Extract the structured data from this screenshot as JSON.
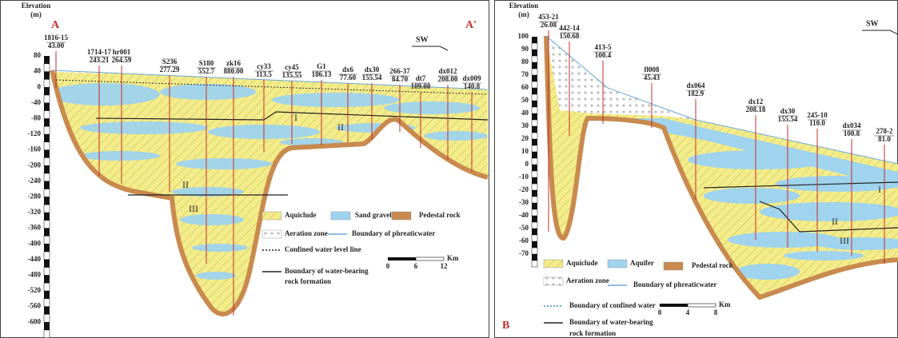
{
  "left_panel": {
    "axis_title": [
      "Elevation",
      "(m)"
    ],
    "section_start": "A",
    "section_end": "A'",
    "direction": "SW",
    "elevation_ticks": [
      "80",
      "40",
      "0",
      "-40",
      "-80",
      "-120",
      "-160",
      "-200",
      "-240",
      "-280",
      "-320",
      "-360",
      "-400",
      "-440",
      "-480",
      "-520",
      "-560",
      "-600"
    ],
    "wells": [
      {
        "name": "1816-15",
        "depth": "43.00"
      },
      {
        "name": "1714-17",
        "depth": "243.21"
      },
      {
        "name": "hr001",
        "depth": "264.59"
      },
      {
        "name": "S236",
        "depth": "277.29"
      },
      {
        "name": "S180",
        "depth": "552.7"
      },
      {
        "name": "zk16",
        "depth": "880.00"
      },
      {
        "name": "cy33",
        "depth": "113.5"
      },
      {
        "name": "cy45",
        "depth": "135.55"
      },
      {
        "name": "G1",
        "depth": "186.13"
      },
      {
        "name": "dx6",
        "depth": "77.60"
      },
      {
        "name": "dx30",
        "depth": "155.54"
      },
      {
        "name": "266-37",
        "depth": "84.70"
      },
      {
        "name": "dt7",
        "depth": "109.00"
      },
      {
        "name": "dx012",
        "depth": "208.00"
      },
      {
        "name": "dx009",
        "depth": "140.8"
      }
    ],
    "zones": [
      "I",
      "II",
      "II",
      "III"
    ],
    "legend": [
      "Aquiclude",
      "Sand gravel",
      "Pedestal rock",
      "Aeration zone",
      "Boundary of phreaticwater",
      "Confined water level line",
      "Boundary of water-bearing",
      "rock formation"
    ],
    "scale": {
      "ticks": [
        "0",
        "6",
        "12"
      ],
      "unit": "Km"
    }
  },
  "right_panel": {
    "axis_title": [
      "Elevation",
      "(m)"
    ],
    "section_start": "B",
    "direction": "SW",
    "elevation_ticks": [
      "100",
      "90",
      "80",
      "70",
      "60",
      "50",
      "40",
      "30",
      "20",
      "10",
      "0",
      "-10",
      "-20",
      "-30",
      "-40",
      "-50",
      "-60",
      "-70"
    ],
    "wells": [
      {
        "name": "453-21",
        "depth": "26.08"
      },
      {
        "name": "442-14",
        "depth": "150.68"
      },
      {
        "name": "413-5",
        "depth": "100.4"
      },
      {
        "name": "fl008",
        "depth": "45.43"
      },
      {
        "name": "dx064",
        "depth": "182.9"
      },
      {
        "name": "dx12",
        "depth": "208.18"
      },
      {
        "name": "dx30",
        "depth": "155.54"
      },
      {
        "name": "245-10",
        "depth": "110.0"
      },
      {
        "name": "dx034",
        "depth": "100.8"
      },
      {
        "name": "278-2",
        "depth": "81.0"
      }
    ],
    "zones": [
      "I",
      "II",
      "III"
    ],
    "legend": [
      "Aquiclude",
      "Aquifer",
      "Pedestal rock",
      "Aeration zone",
      "Boundary of phreaticwater",
      "Boundary of confined water",
      "Boundary of water-bearing",
      "rock formation"
    ],
    "scale": {
      "ticks": [
        "0",
        "4",
        "8"
      ],
      "unit": "Km"
    }
  }
}
